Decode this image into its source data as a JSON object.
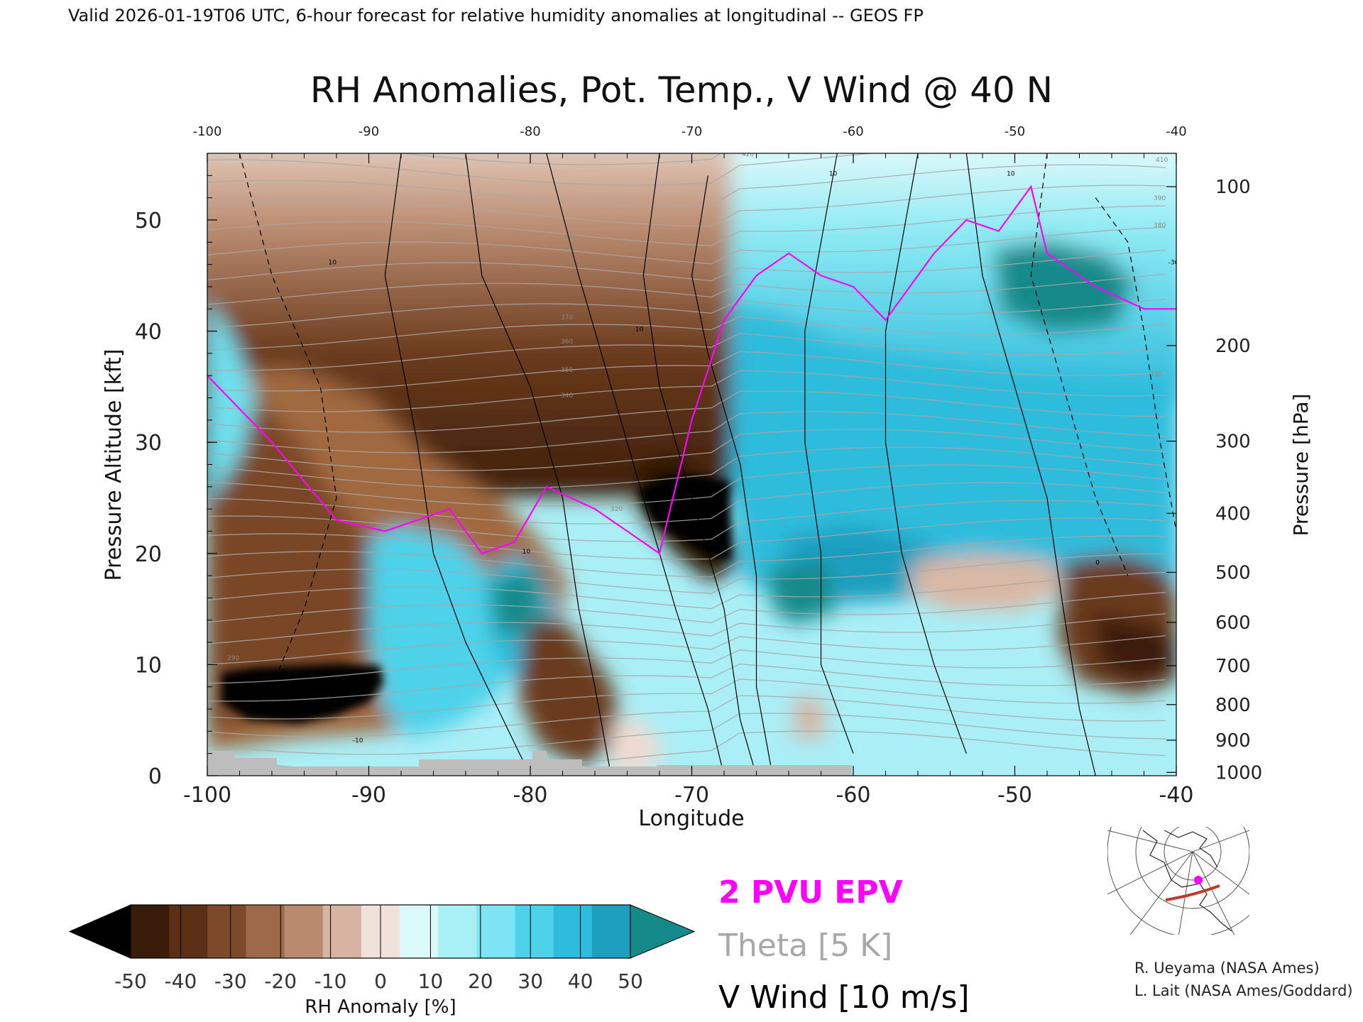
{
  "header": {
    "valid_line": "Valid 2026-01-19T06 UTC, 6-hour forecast for relative humidity anomalies at longitudinal -- GEOS FP"
  },
  "chart_data": {
    "type": "heatmap",
    "title": "RH Anomalies, Pot. Temp., V Wind @ 40 N",
    "xlabel": "Longitude",
    "ylabel_left": "Pressure Altitude [kft]",
    "ylabel_right": "Pressure [hPa]",
    "xlim": [
      -100,
      -40
    ],
    "ylim_kft": [
      0,
      56
    ],
    "x_ticks": [
      "-100",
      "-90",
      "-80",
      "-70",
      "-60",
      "-50",
      "-40"
    ],
    "x_ticks_top": [
      "-100",
      "-90",
      "-80",
      "-70",
      "-60",
      "-50",
      "-40"
    ],
    "y_ticks_left": [
      "0",
      "10",
      "20",
      "30",
      "40",
      "50"
    ],
    "y_ticks_right": [
      {
        "label": "100",
        "kft": 53
      },
      {
        "label": "200",
        "kft": 38.7
      },
      {
        "label": "300",
        "kft": 30.1
      },
      {
        "label": "400",
        "kft": 23.6
      },
      {
        "label": "500",
        "kft": 18.3
      },
      {
        "label": "600",
        "kft": 13.8
      },
      {
        "label": "700",
        "kft": 9.9
      },
      {
        "label": "800",
        "kft": 6.4
      },
      {
        "label": "900",
        "kft": 3.2
      },
      {
        "label": "1000",
        "kft": 0.3
      }
    ],
    "colorbar": {
      "label": "RH Anomaly [%]",
      "ticks": [
        "-50",
        "-40",
        "-30",
        "-20",
        "-10",
        "0",
        "10",
        "20",
        "30",
        "40",
        "50"
      ],
      "colors": [
        "#000000",
        "#3a1c0b",
        "#5a2f16",
        "#7c4a2b",
        "#9c6a4b",
        "#b98a6e",
        "#d6b4a1",
        "#f0e2da",
        "#dcf9f9",
        "#a8eff6",
        "#7ce4f2",
        "#4ed2ea",
        "#2ebcdc",
        "#1e9fbf",
        "#168a8a"
      ]
    },
    "features": [
      {
        "name": "dry (brown) region",
        "x_range": [
          -100,
          -67
        ],
        "kft_range": [
          12,
          56
        ]
      },
      {
        "name": "very dry (black) patch",
        "x_range": [
          -99,
          -89
        ],
        "kft_range": [
          5,
          10
        ]
      },
      {
        "name": "very dry (black) patch",
        "x_range": [
          -73,
          -68
        ],
        "kft_range": [
          20,
          28
        ]
      },
      {
        "name": "moist (cyan) region",
        "x_range": [
          -68,
          -40
        ],
        "kft_range": [
          5,
          45
        ]
      },
      {
        "name": "very moist (teal) patch",
        "x_range": [
          -53,
          -45
        ],
        "kft_range": [
          40,
          47
        ]
      }
    ],
    "epv_2pvu_line": [
      [
        -100,
        36
      ],
      [
        -96,
        30
      ],
      [
        -92,
        23
      ],
      [
        -89,
        22
      ],
      [
        -85,
        24
      ],
      [
        -83,
        20
      ],
      [
        -81,
        21
      ],
      [
        -79,
        26
      ],
      [
        -76,
        24
      ],
      [
        -72,
        20
      ],
      [
        -70,
        32
      ],
      [
        -68,
        41
      ],
      [
        -66,
        45
      ],
      [
        -64,
        47
      ],
      [
        -62,
        45
      ],
      [
        -60,
        44
      ],
      [
        -58,
        41
      ],
      [
        -56,
        45
      ],
      [
        -55,
        47
      ],
      [
        -53,
        50
      ],
      [
        -51,
        49
      ],
      [
        -49,
        53
      ],
      [
        -48,
        47
      ],
      [
        -45,
        44
      ],
      [
        -42,
        42
      ],
      [
        -40,
        42
      ]
    ],
    "theta_label_values": [
      "290",
      "300",
      "320",
      "330",
      "340",
      "350",
      "360",
      "370",
      "380",
      "390",
      "400",
      "410",
      "420"
    ],
    "v_wind_label_values": [
      "10",
      "-10",
      "0",
      "-30"
    ],
    "legend": [
      {
        "label": "2 PVU EPV",
        "color": "#ff00ff"
      },
      {
        "label": "Theta [5 K]",
        "color": "#a8a8a8"
      },
      {
        "label": "V Wind [10 m/s]",
        "color": "#000000"
      }
    ]
  },
  "credits": [
    "R. Ueyama (NASA Ames)",
    "L. Lait (NASA Ames/Goddard)"
  ],
  "colors": {
    "epv": "#ff00ff",
    "theta": "#a8a8a8",
    "wind": "#000000",
    "track": "#c0392b",
    "marker": "#ff00ff"
  }
}
